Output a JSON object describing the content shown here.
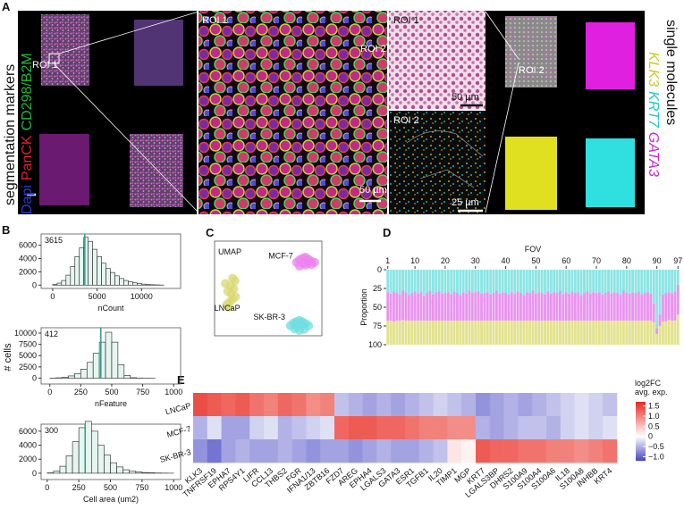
{
  "figure": {
    "panel_labels": [
      "A",
      "B",
      "C",
      "D",
      "E"
    ],
    "panel_a": {
      "left_title": "segmentation markers",
      "markers": [
        {
          "text": "Dapi",
          "color": "#2b3bd6"
        },
        {
          "text": "PanCK",
          "color": "#e0202a"
        },
        {
          "text": "CD298/B2M",
          "color": "#22b83a"
        }
      ],
      "roi_labels": [
        "ROI 1",
        "ROI 1",
        "ROI 2",
        "ROI 1",
        "ROI 2",
        "ROI 2"
      ],
      "scale_bars": [
        "50 µm",
        "50 µm",
        "25 µm"
      ],
      "right_title": "single molecules",
      "molecules": [
        {
          "text": "KLK3",
          "color": "#c8c82a"
        },
        {
          "text": "KRT7",
          "color": "#20c8c8"
        },
        {
          "text": "GATA3",
          "color": "#c828c8"
        }
      ]
    },
    "panel_b_ylabel": "# cells"
  },
  "chart_data": [
    {
      "type": "histogram",
      "xlabel": "nCount",
      "color": "#e6f5ef",
      "bins": [
        0,
        500,
        1000,
        1500,
        2000,
        2500,
        3000,
        3500,
        4000,
        4500,
        5000,
        5500,
        6000,
        6500,
        7000,
        7500,
        8000,
        8500,
        9000,
        9500,
        10000,
        10500,
        11000,
        11500,
        12000,
        12500
      ],
      "values": [
        100,
        300,
        700,
        1500,
        2800,
        4300,
        5600,
        7200,
        6600,
        5400,
        4300,
        3300,
        2500,
        1900,
        1400,
        1000,
        700,
        500,
        350,
        250,
        150,
        100,
        60,
        40,
        20
      ],
      "median": 3615,
      "median_color": "#2a9d8f",
      "xlim": [
        -1300,
        14400
      ],
      "ylim": [
        -500,
        7700
      ],
      "xticks": [
        0,
        5000,
        10000
      ],
      "yticks": [
        0,
        2000,
        4000,
        6000
      ]
    },
    {
      "type": "histogram",
      "xlabel": "nFeature",
      "color": "#e6f5ef",
      "bins": [
        0,
        50,
        100,
        150,
        200,
        250,
        300,
        350,
        400,
        450,
        500,
        550,
        600,
        650,
        700,
        750,
        800,
        850,
        900,
        950,
        1000
      ],
      "values": [
        20,
        80,
        200,
        500,
        1000,
        2000,
        3500,
        5500,
        8000,
        10200,
        8000,
        3000,
        600,
        100,
        30,
        10,
        5,
        0,
        0,
        0
      ],
      "median": 412,
      "median_color": "#2a9d8f",
      "xlim": [
        -70,
        1056
      ],
      "ylim": [
        -1300,
        11200
      ],
      "xticks": [
        0,
        250,
        500,
        750,
        1000
      ],
      "yticks": [
        0,
        2500,
        5000,
        7500,
        10000
      ]
    },
    {
      "type": "histogram",
      "xlabel": "Cell area (um2)",
      "color": "#e6f5ef",
      "bins": [
        0,
        50,
        100,
        150,
        200,
        250,
        300,
        350,
        400,
        450,
        500,
        550,
        600,
        650,
        700,
        750,
        800,
        850,
        900,
        950,
        1000
      ],
      "values": [
        50,
        300,
        1000,
        2500,
        4500,
        6500,
        7400,
        6000,
        4000,
        2600,
        1500,
        900,
        500,
        300,
        200,
        100,
        60,
        30,
        15,
        5
      ],
      "median": 300,
      "median_color": "#2a9d8f",
      "xlim": [
        -48,
        1055
      ],
      "ylim": [
        -900,
        7000
      ],
      "xticks": [
        0,
        250,
        500,
        750,
        1000
      ],
      "yticks": [
        0,
        2000,
        4000,
        6000
      ]
    },
    {
      "type": "scatter",
      "title": "UMAP",
      "series": [
        {
          "name": "MCF-7",
          "color": "#ee82ee",
          "x": [
            4.5,
            5,
            5.5,
            6,
            6.5,
            7,
            7.5,
            5,
            6,
            7,
            5.5,
            6.5
          ],
          "y": [
            7,
            7.5,
            7.8,
            8,
            7.6,
            7.2,
            7,
            6.3,
            6.5,
            6.6,
            6.8,
            6.9
          ]
        },
        {
          "name": "LNCaP",
          "color": "#d8d870",
          "x": [
            -7,
            -6.5,
            -6,
            -5.5,
            -6.2,
            -6.8,
            -5.8,
            -6.4,
            -7.2,
            -5.6,
            -6,
            -6.6
          ],
          "y": [
            -1,
            -0.5,
            0,
            0.5,
            1,
            1.5,
            2,
            2.5,
            3,
            3.5,
            4,
            -1.5
          ]
        },
        {
          "name": "SK-BR-3",
          "color": "#6fdde0",
          "x": [
            3.5,
            4,
            4.5,
            5,
            5.5,
            6,
            6.5,
            4.2,
            5,
            5.8,
            4.6,
            5.4
          ],
          "y": [
            -5,
            -4.5,
            -4.2,
            -4,
            -4.3,
            -4.6,
            -5,
            -5.6,
            -5.9,
            -5.7,
            -5.2,
            -5
          ]
        }
      ]
    },
    {
      "type": "bar",
      "stacked": true,
      "xlabel": "FOV",
      "ylabel": "Proportion",
      "x": [
        1,
        2,
        3,
        4,
        5,
        6,
        7,
        8,
        9,
        10,
        11,
        12,
        13,
        14,
        15,
        16,
        17,
        18,
        19,
        20,
        21,
        22,
        23,
        24,
        25,
        26,
        27,
        28,
        29,
        30,
        31,
        32,
        33,
        34,
        35,
        36,
        37,
        38,
        39,
        40,
        41,
        42,
        43,
        44,
        45,
        46,
        47,
        48,
        49,
        50,
        51,
        52,
        53,
        54,
        55,
        56,
        57,
        58,
        59,
        60,
        61,
        62,
        63,
        64,
        65,
        66,
        67,
        68,
        69,
        70,
        71,
        72,
        73,
        74,
        75,
        76,
        77,
        78,
        79,
        80,
        81,
        82,
        83,
        84,
        85,
        86,
        87,
        88,
        89,
        90,
        91,
        92,
        93,
        94,
        95,
        96,
        97
      ],
      "series": [
        {
          "color": "#8de4e4",
          "values": [
            30,
            32,
            29,
            31,
            33,
            28,
            30,
            34,
            31,
            29,
            32,
            30,
            35,
            31,
            28,
            33,
            30,
            29,
            32,
            31,
            30,
            33,
            29,
            31,
            34,
            30,
            32,
            28,
            31,
            30,
            29,
            32,
            31,
            30,
            33,
            31,
            28,
            32,
            30,
            31,
            33,
            30,
            32,
            29,
            31,
            34,
            30,
            31,
            28,
            32,
            30,
            31,
            33,
            29,
            32,
            30,
            31,
            28,
            33,
            30,
            32,
            29,
            31,
            30,
            34,
            31,
            29,
            32,
            30,
            31,
            30,
            33,
            31,
            29,
            32,
            30,
            31,
            33,
            28,
            31,
            32,
            30,
            31,
            29,
            33,
            31,
            30,
            32,
            45,
            78,
            60,
            33,
            31,
            30,
            32,
            29,
            20
          ]
        },
        {
          "color": "#e895ee",
          "values": [
            38,
            36,
            40,
            37,
            35,
            39,
            38,
            34,
            37,
            39,
            36,
            38,
            33,
            37,
            40,
            35,
            38,
            39,
            36,
            37,
            38,
            35,
            39,
            37,
            34,
            38,
            36,
            40,
            37,
            38,
            39,
            36,
            37,
            38,
            35,
            37,
            40,
            36,
            38,
            37,
            35,
            38,
            36,
            39,
            37,
            34,
            38,
            37,
            40,
            36,
            38,
            37,
            35,
            39,
            36,
            38,
            37,
            40,
            35,
            38,
            36,
            39,
            37,
            38,
            34,
            37,
            39,
            36,
            38,
            37,
            38,
            35,
            37,
            39,
            36,
            38,
            37,
            35,
            40,
            37,
            36,
            38,
            37,
            39,
            35,
            37,
            38,
            36,
            25,
            8,
            15,
            36,
            38,
            37,
            36,
            39,
            40
          ]
        },
        {
          "color": "#e2e28e",
          "values": [
            32,
            32,
            31,
            32,
            32,
            33,
            32,
            32,
            32,
            32,
            32,
            32,
            32,
            32,
            32,
            32,
            32,
            32,
            32,
            32,
            32,
            32,
            32,
            32,
            32,
            32,
            32,
            32,
            32,
            32,
            32,
            32,
            32,
            32,
            32,
            32,
            32,
            32,
            32,
            32,
            32,
            32,
            32,
            32,
            32,
            32,
            32,
            32,
            32,
            32,
            32,
            32,
            32,
            32,
            32,
            32,
            32,
            32,
            32,
            32,
            32,
            32,
            32,
            32,
            32,
            32,
            32,
            32,
            32,
            32,
            32,
            32,
            32,
            32,
            32,
            32,
            32,
            32,
            32,
            32,
            32,
            32,
            32,
            32,
            32,
            32,
            32,
            32,
            30,
            14,
            25,
            31,
            31,
            33,
            32,
            32,
            40
          ]
        }
      ],
      "xlim": [
        0.5,
        97.5
      ],
      "ylim": [
        100,
        0
      ],
      "xticks": [
        1,
        10,
        20,
        30,
        40,
        50,
        60,
        70,
        80,
        90,
        97
      ],
      "yticks": [
        0,
        25,
        50,
        75,
        100
      ]
    },
    {
      "type": "heatmap",
      "legend_title": [
        "log2FC",
        "avg. exp."
      ],
      "rows": [
        "LNCaP",
        "MCF-7",
        "SK-BR-3"
      ],
      "columns": [
        "KLK3",
        "TNFRSF19",
        "EPHA7",
        "RPS4Y1",
        "LIFR",
        "CCL13",
        "THBS2",
        "FGR",
        "IFNA1/13",
        "ZBTB16",
        "FZD7",
        "AREG",
        "EPHA4",
        "LGALS3",
        "GATA3",
        "ESR1",
        "TGFB1",
        "IL20",
        "TIMP1",
        "MGP",
        "KRT7",
        "LGALS3BP",
        "DHRS2",
        "S100A9",
        "S100A4",
        "S100A6",
        "IL18",
        "S100A8",
        "INHBB",
        "KRT4"
      ],
      "values": [
        [
          1.4,
          1.3,
          1.2,
          1.3,
          1.1,
          1.0,
          1.2,
          1.1,
          0.9,
          1.0,
          -0.4,
          -0.5,
          -0.6,
          -0.5,
          -0.6,
          -0.5,
          -0.4,
          -0.3,
          -0.4,
          -0.5,
          -0.7,
          -0.6,
          -0.5,
          -0.6,
          -0.5,
          -0.4,
          -0.3,
          -0.2,
          -0.3,
          -0.4
        ],
        [
          -0.5,
          -0.2,
          -0.6,
          -0.6,
          -0.3,
          -0.2,
          -0.5,
          -0.4,
          -0.3,
          -0.2,
          1.2,
          1.3,
          1.3,
          1.2,
          1.2,
          1.1,
          1.0,
          1.0,
          0.9,
          0.9,
          -0.5,
          -0.6,
          -0.5,
          -0.4,
          -0.4,
          -0.5,
          -0.3,
          -0.2,
          -0.3,
          -0.2
        ],
        [
          -0.7,
          -0.9,
          -0.6,
          -0.5,
          -0.6,
          -0.6,
          -0.5,
          -0.6,
          -0.7,
          -0.6,
          -0.6,
          -0.7,
          -0.6,
          -0.5,
          -0.6,
          -0.6,
          -0.5,
          -0.4,
          0.2,
          0.1,
          1.3,
          1.2,
          1.2,
          1.1,
          1.1,
          1.0,
          1.0,
          0.9,
          1.0,
          1.1
        ]
      ],
      "colormap": [
        "#4646c4",
        "#ffffff",
        "#e8281e"
      ],
      "clim": [
        -1.2,
        1.7
      ],
      "cticks": [
        {
          "value": 1.5,
          "label": "1.5"
        },
        {
          "value": 1,
          "label": "1.0"
        },
        {
          "value": 0.5,
          "label": "0.5"
        },
        0,
        {
          "value": -0.5,
          "label": "−0.5"
        },
        {
          "value": -1,
          "label": "−1.0"
        }
      ]
    }
  ]
}
